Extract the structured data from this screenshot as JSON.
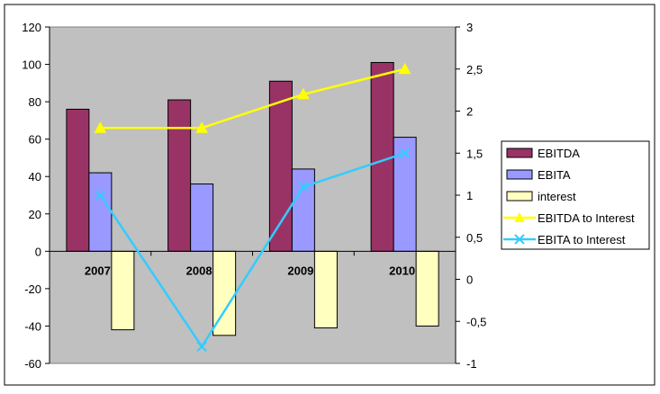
{
  "colors": {
    "plot_bg": "#c0c0c0",
    "EBITDA": "#993366",
    "EBITA": "#9999ff",
    "interest": "#ffffc0",
    "EBITDA to Interest": "#ffff00",
    "EBITA to Interest": "#33ccff",
    "border": "#000000"
  },
  "chart_data": {
    "type": "bar",
    "categories": [
      "2007",
      "2008",
      "2009",
      "2010"
    ],
    "series": [
      {
        "name": "EBITDA",
        "type": "bar",
        "axis": "left",
        "values": [
          76,
          81,
          91,
          101
        ]
      },
      {
        "name": "EBITA",
        "type": "bar",
        "axis": "left",
        "values": [
          42,
          36,
          44,
          61
        ]
      },
      {
        "name": "interest",
        "type": "bar",
        "axis": "left",
        "values": [
          -42,
          -45,
          -41,
          -40
        ]
      },
      {
        "name": "EBITDA to Interest",
        "type": "line",
        "axis": "right",
        "marker": "triangle",
        "values": [
          1.8,
          1.8,
          2.2,
          2.5
        ]
      },
      {
        "name": "EBITA to Interest",
        "type": "line",
        "axis": "right",
        "marker": "x",
        "values": [
          1.0,
          -0.8,
          1.1,
          1.5
        ]
      }
    ],
    "y_left": {
      "min": -60,
      "max": 120,
      "step": 20,
      "ticks": [
        "-60",
        "-40",
        "-20",
        "0",
        "20",
        "40",
        "60",
        "80",
        "100",
        "120"
      ]
    },
    "y_right": {
      "min": -1,
      "max": 3,
      "step": 0.5,
      "ticks": [
        "-1",
        "-0,5",
        "0",
        "0,5",
        "1",
        "1,5",
        "2",
        "2,5",
        "3"
      ]
    },
    "title": "",
    "xlabel": "",
    "ylabel": "",
    "grid": false,
    "legend": {
      "placement": "right",
      "entries": [
        "EBITDA",
        "EBITA",
        "interest",
        "EBITDA to Interest",
        "EBITA to Interest"
      ]
    }
  }
}
